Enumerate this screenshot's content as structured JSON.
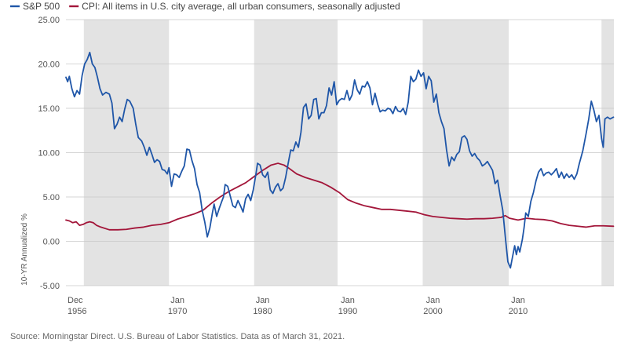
{
  "chart_data": {
    "type": "line",
    "ylabel": "10-YR Annualized %",
    "ylim": [
      -5,
      25
    ],
    "y_ticks": [
      "25.00",
      "20.00",
      "15.00",
      "10.00",
      "5.00",
      "0.00",
      "-5.00"
    ],
    "y_tick_values": [
      25,
      20,
      15,
      10,
      5,
      0,
      -5
    ],
    "x_range": [
      1956.9,
      2021.25
    ],
    "x_ticks": [
      {
        "x": 1956.9,
        "line1": "Dec",
        "line2": "1956"
      },
      {
        "x": 1970.0,
        "line1": "Jan",
        "line2": "1970"
      },
      {
        "x": 1980.0,
        "line1": "Jan",
        "line2": "1980"
      },
      {
        "x": 1990.0,
        "line1": "Jan",
        "line2": "1990"
      },
      {
        "x": 2000.0,
        "line1": "Jan",
        "line2": "2000"
      },
      {
        "x": 2010.0,
        "line1": "Jan",
        "line2": "2010"
      }
    ],
    "shaded_periods": [
      [
        1959.0,
        1969.0
      ],
      [
        1979.0,
        1988.8
      ],
      [
        1998.8,
        2008.9
      ],
      [
        2019.8,
        2021.25
      ]
    ],
    "grid": "horizontal",
    "legend_position": "top-left",
    "series": [
      {
        "name": "S&P 500",
        "color": "#1f56a8",
        "points": [
          [
            1956.9,
            18.5
          ],
          [
            1957.1,
            18.0
          ],
          [
            1957.3,
            18.6
          ],
          [
            1957.6,
            17.2
          ],
          [
            1957.9,
            16.3
          ],
          [
            1958.2,
            17.0
          ],
          [
            1958.5,
            16.6
          ],
          [
            1958.8,
            18.7
          ],
          [
            1959.1,
            20.0
          ],
          [
            1959.4,
            20.5
          ],
          [
            1959.7,
            21.3
          ],
          [
            1960.0,
            20.0
          ],
          [
            1960.3,
            19.6
          ],
          [
            1960.6,
            18.5
          ],
          [
            1960.9,
            17.2
          ],
          [
            1961.2,
            16.5
          ],
          [
            1961.6,
            16.8
          ],
          [
            1962.0,
            16.6
          ],
          [
            1962.3,
            15.6
          ],
          [
            1962.6,
            12.7
          ],
          [
            1962.9,
            13.2
          ],
          [
            1963.2,
            14.0
          ],
          [
            1963.5,
            13.5
          ],
          [
            1963.8,
            14.9
          ],
          [
            1964.1,
            16.0
          ],
          [
            1964.4,
            15.8
          ],
          [
            1964.8,
            15.0
          ],
          [
            1965.1,
            13.2
          ],
          [
            1965.4,
            11.7
          ],
          [
            1965.8,
            11.3
          ],
          [
            1966.1,
            10.6
          ],
          [
            1966.4,
            9.7
          ],
          [
            1966.7,
            10.6
          ],
          [
            1967.0,
            9.8
          ],
          [
            1967.3,
            8.9
          ],
          [
            1967.6,
            9.2
          ],
          [
            1967.9,
            9.0
          ],
          [
            1968.2,
            8.1
          ],
          [
            1968.5,
            8.0
          ],
          [
            1968.8,
            7.6
          ],
          [
            1969.0,
            8.3
          ],
          [
            1969.3,
            6.2
          ],
          [
            1969.6,
            7.6
          ],
          [
            1969.9,
            7.5
          ],
          [
            1970.2,
            7.2
          ],
          [
            1970.5,
            7.9
          ],
          [
            1970.8,
            8.5
          ],
          [
            1971.1,
            10.4
          ],
          [
            1971.4,
            10.3
          ],
          [
            1971.7,
            9.1
          ],
          [
            1972.0,
            8.2
          ],
          [
            1972.3,
            6.4
          ],
          [
            1972.6,
            5.5
          ],
          [
            1972.9,
            3.5
          ],
          [
            1973.2,
            2.2
          ],
          [
            1973.5,
            0.5
          ],
          [
            1973.8,
            1.5
          ],
          [
            1974.1,
            3.2
          ],
          [
            1974.3,
            4.2
          ],
          [
            1974.6,
            2.8
          ],
          [
            1974.9,
            3.7
          ],
          [
            1975.2,
            4.5
          ],
          [
            1975.4,
            5.0
          ],
          [
            1975.6,
            6.4
          ],
          [
            1975.9,
            6.2
          ],
          [
            1976.2,
            5.1
          ],
          [
            1976.5,
            4.0
          ],
          [
            1976.8,
            3.8
          ],
          [
            1977.1,
            4.6
          ],
          [
            1977.4,
            4.0
          ],
          [
            1977.7,
            3.3
          ],
          [
            1978.0,
            4.8
          ],
          [
            1978.3,
            5.3
          ],
          [
            1978.6,
            4.6
          ],
          [
            1978.9,
            5.8
          ],
          [
            1979.2,
            7.5
          ],
          [
            1979.4,
            8.8
          ],
          [
            1979.7,
            8.6
          ],
          [
            1980.0,
            7.5
          ],
          [
            1980.3,
            7.2
          ],
          [
            1980.6,
            7.8
          ],
          [
            1980.9,
            5.8
          ],
          [
            1981.2,
            5.4
          ],
          [
            1981.5,
            6.1
          ],
          [
            1981.8,
            6.5
          ],
          [
            1982.1,
            5.7
          ],
          [
            1982.4,
            6.0
          ],
          [
            1982.7,
            7.2
          ],
          [
            1983.0,
            8.8
          ],
          [
            1983.3,
            10.3
          ],
          [
            1983.6,
            10.2
          ],
          [
            1983.9,
            11.2
          ],
          [
            1984.2,
            10.6
          ],
          [
            1984.5,
            12.3
          ],
          [
            1984.8,
            15.1
          ],
          [
            1985.1,
            15.5
          ],
          [
            1985.4,
            13.8
          ],
          [
            1985.7,
            14.2
          ],
          [
            1986.0,
            16.0
          ],
          [
            1986.3,
            16.1
          ],
          [
            1986.6,
            13.8
          ],
          [
            1986.9,
            14.5
          ],
          [
            1987.2,
            14.5
          ],
          [
            1987.5,
            15.3
          ],
          [
            1987.8,
            17.3
          ],
          [
            1988.1,
            16.5
          ],
          [
            1988.4,
            18.0
          ],
          [
            1988.7,
            15.4
          ],
          [
            1989.0,
            15.9
          ],
          [
            1989.3,
            16.1
          ],
          [
            1989.6,
            16.0
          ],
          [
            1989.9,
            17.0
          ],
          [
            1990.2,
            15.9
          ],
          [
            1990.5,
            16.5
          ],
          [
            1990.8,
            18.2
          ],
          [
            1991.1,
            17.1
          ],
          [
            1991.4,
            16.6
          ],
          [
            1991.7,
            17.5
          ],
          [
            1992.0,
            17.4
          ],
          [
            1992.3,
            18.0
          ],
          [
            1992.6,
            17.3
          ],
          [
            1992.9,
            15.4
          ],
          [
            1993.2,
            16.7
          ],
          [
            1993.5,
            15.5
          ],
          [
            1993.8,
            14.6
          ],
          [
            1994.1,
            14.8
          ],
          [
            1994.4,
            14.7
          ],
          [
            1994.7,
            15.0
          ],
          [
            1995.0,
            14.9
          ],
          [
            1995.3,
            14.4
          ],
          [
            1995.6,
            15.2
          ],
          [
            1995.9,
            14.7
          ],
          [
            1996.2,
            14.6
          ],
          [
            1996.5,
            15.0
          ],
          [
            1996.8,
            14.3
          ],
          [
            1997.1,
            15.7
          ],
          [
            1997.4,
            18.6
          ],
          [
            1997.7,
            18.0
          ],
          [
            1998.0,
            18.3
          ],
          [
            1998.3,
            19.3
          ],
          [
            1998.6,
            18.6
          ],
          [
            1998.9,
            19.0
          ],
          [
            1999.2,
            17.2
          ],
          [
            1999.5,
            18.6
          ],
          [
            1999.8,
            18.1
          ],
          [
            2000.1,
            15.7
          ],
          [
            2000.4,
            16.6
          ],
          [
            2000.7,
            14.5
          ],
          [
            2001.0,
            13.5
          ],
          [
            2001.3,
            12.7
          ],
          [
            2001.6,
            10.3
          ],
          [
            2001.9,
            8.5
          ],
          [
            2002.2,
            9.5
          ],
          [
            2002.5,
            9.1
          ],
          [
            2002.8,
            9.8
          ],
          [
            2003.1,
            10.1
          ],
          [
            2003.4,
            11.7
          ],
          [
            2003.7,
            11.9
          ],
          [
            2004.0,
            11.5
          ],
          [
            2004.3,
            10.2
          ],
          [
            2004.6,
            9.6
          ],
          [
            2004.9,
            9.9
          ],
          [
            2005.2,
            9.4
          ],
          [
            2005.5,
            9.1
          ],
          [
            2005.8,
            8.5
          ],
          [
            2006.1,
            8.7
          ],
          [
            2006.4,
            9.0
          ],
          [
            2006.7,
            8.5
          ],
          [
            2007.0,
            8.0
          ],
          [
            2007.3,
            6.5
          ],
          [
            2007.6,
            6.9
          ],
          [
            2007.9,
            5.1
          ],
          [
            2008.2,
            3.5
          ],
          [
            2008.5,
            0.5
          ],
          [
            2008.8,
            -2.3
          ],
          [
            2009.1,
            -3.0
          ],
          [
            2009.3,
            -2.0
          ],
          [
            2009.6,
            -0.5
          ],
          [
            2009.8,
            -1.5
          ],
          [
            2010.0,
            -0.6
          ],
          [
            2010.2,
            -1.2
          ],
          [
            2010.5,
            0.2
          ],
          [
            2010.7,
            1.5
          ],
          [
            2010.9,
            3.2
          ],
          [
            2011.2,
            2.8
          ],
          [
            2011.5,
            4.5
          ],
          [
            2011.8,
            5.5
          ],
          [
            2012.1,
            6.8
          ],
          [
            2012.4,
            7.8
          ],
          [
            2012.7,
            8.2
          ],
          [
            2013.0,
            7.4
          ],
          [
            2013.3,
            7.7
          ],
          [
            2013.6,
            7.8
          ],
          [
            2013.9,
            7.5
          ],
          [
            2014.2,
            7.8
          ],
          [
            2014.5,
            8.2
          ],
          [
            2014.8,
            7.2
          ],
          [
            2015.1,
            7.8
          ],
          [
            2015.4,
            7.1
          ],
          [
            2015.7,
            7.6
          ],
          [
            2016.0,
            7.2
          ],
          [
            2016.3,
            7.5
          ],
          [
            2016.6,
            7.0
          ],
          [
            2016.9,
            7.6
          ],
          [
            2017.2,
            8.8
          ],
          [
            2017.6,
            10.2
          ],
          [
            2018.0,
            12.2
          ],
          [
            2018.3,
            13.8
          ],
          [
            2018.6,
            15.8
          ],
          [
            2018.9,
            14.8
          ],
          [
            2019.2,
            13.5
          ],
          [
            2019.5,
            14.2
          ],
          [
            2019.8,
            11.6
          ],
          [
            2020.0,
            10.6
          ],
          [
            2020.2,
            13.8
          ],
          [
            2020.5,
            14.0
          ],
          [
            2020.8,
            13.8
          ],
          [
            2021.2,
            14.0
          ]
        ]
      },
      {
        "name": "CPI: All items in U.S. city average, all urban consumers, seasonally adjusted",
        "color": "#a3163a",
        "points": [
          [
            1956.9,
            2.4
          ],
          [
            1957.3,
            2.3
          ],
          [
            1957.7,
            2.1
          ],
          [
            1958.1,
            2.2
          ],
          [
            1958.5,
            1.8
          ],
          [
            1958.9,
            1.9
          ],
          [
            1959.3,
            2.1
          ],
          [
            1959.7,
            2.2
          ],
          [
            1960.1,
            2.1
          ],
          [
            1960.5,
            1.8
          ],
          [
            1961.0,
            1.6
          ],
          [
            1962.0,
            1.3
          ],
          [
            1963.0,
            1.3
          ],
          [
            1964.0,
            1.35
          ],
          [
            1965.0,
            1.5
          ],
          [
            1966.0,
            1.6
          ],
          [
            1967.0,
            1.8
          ],
          [
            1968.0,
            1.9
          ],
          [
            1969.0,
            2.1
          ],
          [
            1970.0,
            2.5
          ],
          [
            1971.0,
            2.8
          ],
          [
            1972.0,
            3.1
          ],
          [
            1973.0,
            3.5
          ],
          [
            1974.0,
            4.3
          ],
          [
            1975.0,
            5.0
          ],
          [
            1976.0,
            5.6
          ],
          [
            1977.0,
            6.1
          ],
          [
            1978.0,
            6.6
          ],
          [
            1979.0,
            7.3
          ],
          [
            1980.0,
            8.0
          ],
          [
            1981.0,
            8.6
          ],
          [
            1981.8,
            8.8
          ],
          [
            1982.5,
            8.6
          ],
          [
            1983.0,
            8.3
          ],
          [
            1984.0,
            7.6
          ],
          [
            1985.0,
            7.2
          ],
          [
            1986.0,
            6.9
          ],
          [
            1987.0,
            6.6
          ],
          [
            1988.0,
            6.1
          ],
          [
            1989.0,
            5.5
          ],
          [
            1990.0,
            4.7
          ],
          [
            1991.0,
            4.3
          ],
          [
            1992.0,
            4.0
          ],
          [
            1993.0,
            3.8
          ],
          [
            1994.0,
            3.6
          ],
          [
            1995.0,
            3.6
          ],
          [
            1996.0,
            3.5
          ],
          [
            1997.0,
            3.4
          ],
          [
            1998.0,
            3.3
          ],
          [
            1999.0,
            3.0
          ],
          [
            2000.0,
            2.8
          ],
          [
            2001.0,
            2.7
          ],
          [
            2002.0,
            2.6
          ],
          [
            2003.0,
            2.55
          ],
          [
            2004.0,
            2.5
          ],
          [
            2005.0,
            2.55
          ],
          [
            2006.0,
            2.55
          ],
          [
            2007.0,
            2.6
          ],
          [
            2008.0,
            2.7
          ],
          [
            2008.5,
            2.9
          ],
          [
            2009.0,
            2.6
          ],
          [
            2010.0,
            2.4
          ],
          [
            2011.0,
            2.6
          ],
          [
            2012.0,
            2.5
          ],
          [
            2013.0,
            2.45
          ],
          [
            2014.0,
            2.3
          ],
          [
            2015.0,
            2.0
          ],
          [
            2016.0,
            1.8
          ],
          [
            2017.0,
            1.7
          ],
          [
            2018.0,
            1.6
          ],
          [
            2019.0,
            1.75
          ],
          [
            2020.0,
            1.75
          ],
          [
            2021.2,
            1.7
          ]
        ]
      }
    ]
  },
  "source_note": "Source: Morningstar Direct. U.S. Bureau of Labor Statistics.  Data as of March 31, 2021."
}
